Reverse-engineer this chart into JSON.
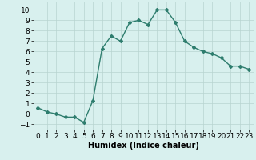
{
  "xlabel": "Humidex (Indice chaleur)",
  "x_values": [
    0,
    1,
    2,
    3,
    4,
    5,
    6,
    7,
    8,
    9,
    10,
    11,
    12,
    13,
    14,
    15,
    16,
    17,
    18,
    19,
    20,
    21,
    22,
    23
  ],
  "y_values": [
    0.6,
    0.2,
    0.0,
    -0.3,
    -0.3,
    -0.8,
    1.3,
    6.3,
    7.5,
    7.0,
    8.8,
    9.0,
    8.6,
    10.0,
    10.0,
    8.8,
    7.0,
    6.4,
    6.0,
    5.8,
    5.4,
    4.6,
    4.6,
    4.3
  ],
  "line_color": "#2e7d6e",
  "marker": "D",
  "marker_size": 2.0,
  "linewidth": 1.0,
  "ylim": [
    -1.5,
    10.8
  ],
  "xlim": [
    -0.5,
    23.5
  ],
  "yticks": [
    -1,
    0,
    1,
    2,
    3,
    4,
    5,
    6,
    7,
    8,
    9,
    10
  ],
  "xticks": [
    0,
    1,
    2,
    3,
    4,
    5,
    6,
    7,
    8,
    9,
    10,
    11,
    12,
    13,
    14,
    15,
    16,
    17,
    18,
    19,
    20,
    21,
    22,
    23
  ],
  "bg_color": "#d8f0ee",
  "grid_color": "#b8d4d0",
  "xlabel_fontsize": 7,
  "tick_fontsize": 6.5
}
